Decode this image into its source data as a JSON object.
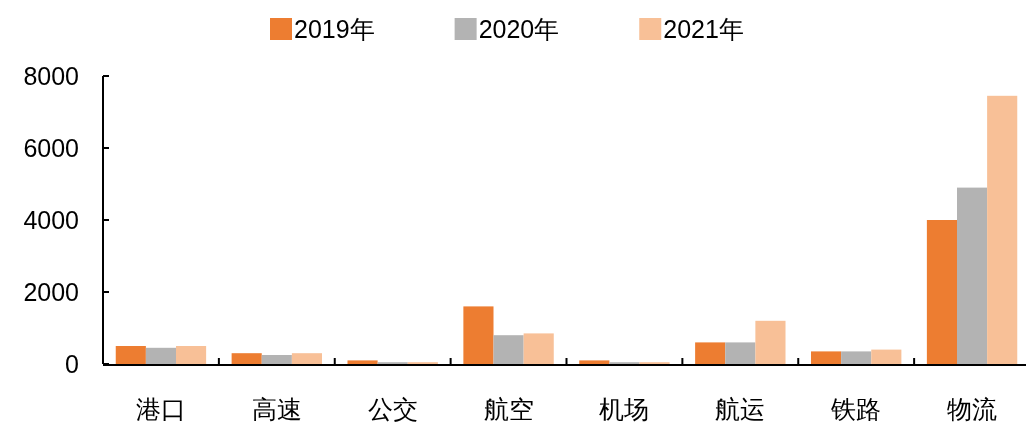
{
  "chart_data": {
    "type": "bar",
    "categories": [
      "港口",
      "高速",
      "公交",
      "航空",
      "机场",
      "航运",
      "铁路",
      "物流"
    ],
    "series": [
      {
        "name": "2019年",
        "color": "#ed7d31",
        "values": [
          500,
          300,
          100,
          1600,
          100,
          600,
          350,
          4000
        ]
      },
      {
        "name": "2020年",
        "color": "#b3b3b3",
        "values": [
          450,
          250,
          50,
          800,
          50,
          600,
          350,
          4900
        ]
      },
      {
        "name": "2021年",
        "color": "#f8c097",
        "values": [
          500,
          300,
          50,
          850,
          50,
          1200,
          400,
          7450
        ]
      }
    ],
    "ylim": [
      0,
      8000
    ],
    "yticks": [
      0,
      2000,
      4000,
      6000,
      8000
    ],
    "grid": false,
    "legend": "top"
  }
}
